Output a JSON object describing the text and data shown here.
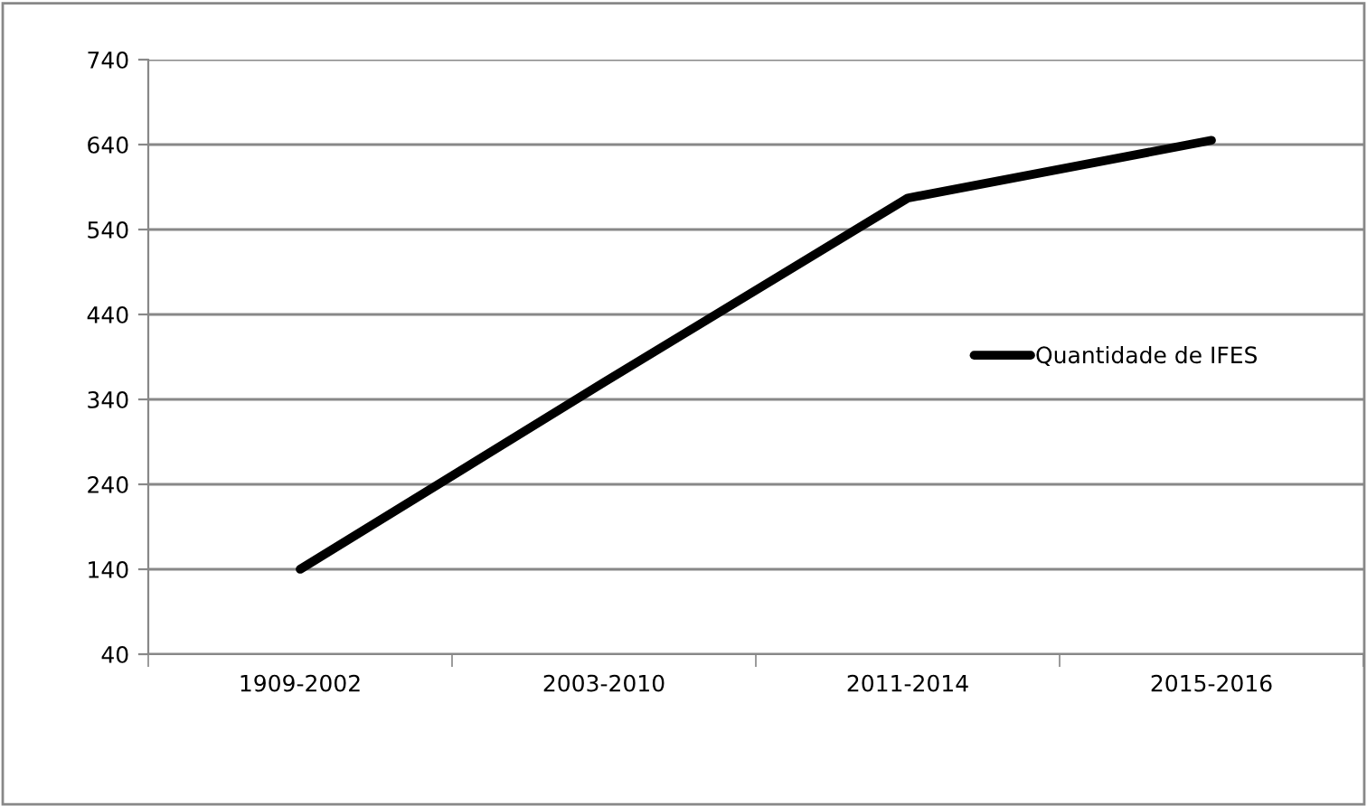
{
  "chart_data": {
    "type": "line",
    "categories": [
      "1909-2002",
      "2003-2010",
      "2011-2014",
      "2015-2016"
    ],
    "series": [
      {
        "name": "Quantidade de IFES",
        "color": "#000000",
        "values": [
          140,
          360,
          577,
          645
        ]
      }
    ],
    "ylim": [
      40,
      740
    ],
    "yticks": [
      40,
      140,
      240,
      340,
      440,
      540,
      640,
      740
    ],
    "grid": "y",
    "legend": "right",
    "marker": "none",
    "line_style": "solid"
  }
}
